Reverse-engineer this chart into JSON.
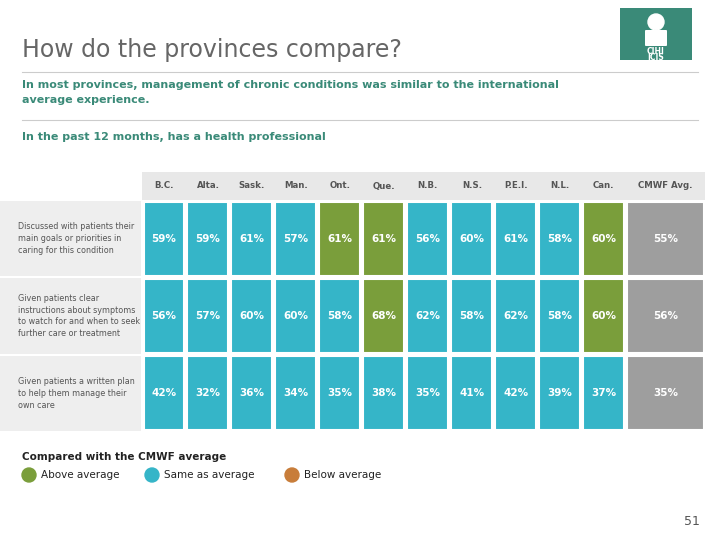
{
  "title": "How do the provinces compare?",
  "subtitle": "In most provinces, management of chronic conditions was similar to the international\naverage experience.",
  "section_label": "In the past 12 months, has a health professional",
  "columns": [
    "B.C.",
    "Alta.",
    "Sask.",
    "Man.",
    "Ont.",
    "Que.",
    "N.B.",
    "N.S.",
    "P.E.I.",
    "N.L.",
    "Can.",
    "CMWF Avg."
  ],
  "rows": [
    {
      "label": "Discussed with patients their\nmain goals or priorities in\ncaring for this condition",
      "values": [
        "59%",
        "59%",
        "61%",
        "57%",
        "61%",
        "61%",
        "56%",
        "60%",
        "61%",
        "58%",
        "60%",
        "55%"
      ],
      "colors": [
        "#35b5c8",
        "#35b5c8",
        "#35b5c8",
        "#35b5c8",
        "#7a9e3b",
        "#7a9e3b",
        "#35b5c8",
        "#35b5c8",
        "#35b5c8",
        "#35b5c8",
        "#7a9e3b",
        "#9e9e9e"
      ]
    },
    {
      "label": "Given patients clear\ninstructions about symptoms\nto watch for and when to seek\nfurther care or treatment",
      "values": [
        "56%",
        "57%",
        "60%",
        "60%",
        "58%",
        "68%",
        "62%",
        "58%",
        "62%",
        "58%",
        "60%",
        "56%"
      ],
      "colors": [
        "#35b5c8",
        "#35b5c8",
        "#35b5c8",
        "#35b5c8",
        "#35b5c8",
        "#7a9e3b",
        "#35b5c8",
        "#35b5c8",
        "#35b5c8",
        "#35b5c8",
        "#7a9e3b",
        "#9e9e9e"
      ]
    },
    {
      "label": "Given patients a written plan\nto help them manage their\nown care",
      "values": [
        "42%",
        "32%",
        "36%",
        "34%",
        "35%",
        "38%",
        "35%",
        "41%",
        "42%",
        "39%",
        "37%",
        "35%"
      ],
      "colors": [
        "#35b5c8",
        "#35b5c8",
        "#35b5c8",
        "#35b5c8",
        "#35b5c8",
        "#35b5c8",
        "#35b5c8",
        "#35b5c8",
        "#35b5c8",
        "#35b5c8",
        "#35b5c8",
        "#9e9e9e"
      ]
    }
  ],
  "legend": {
    "above_color": "#7a9e3b",
    "same_color": "#35b5c8",
    "below_color": "#c87d3a",
    "above_label": "Above average",
    "same_label": "Same as average",
    "below_label": "Below average"
  },
  "bg_color": "#ffffff",
  "title_color": "#666666",
  "subtitle_color": "#3a8a78",
  "section_color": "#3a8a78",
  "header_color": "#555555",
  "row_label_color": "#555555",
  "page_number": "51",
  "logo_teal": "#3a8a78",
  "header_bg": "#e8e8e8"
}
